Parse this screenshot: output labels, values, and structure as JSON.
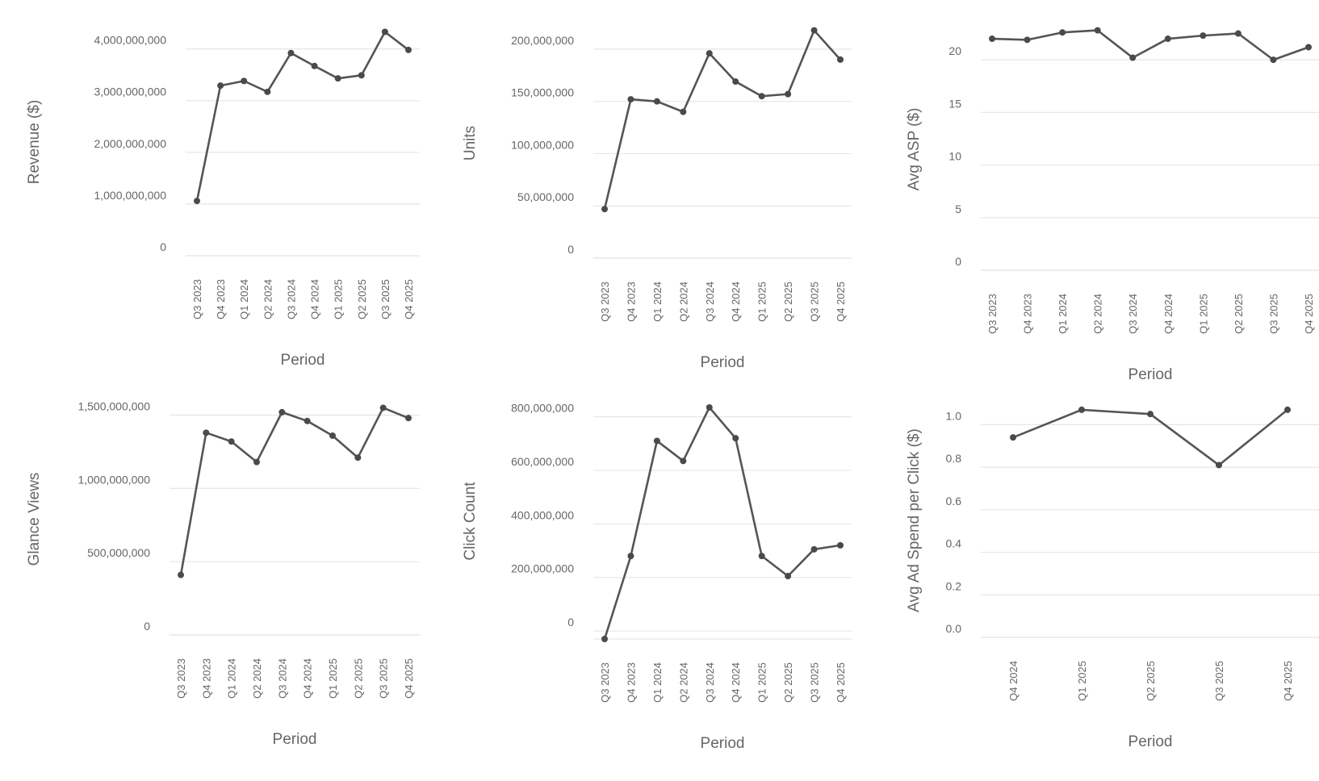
{
  "colors": {
    "series": "#555555",
    "point": "#4a4a4a",
    "grid": "#e6e6e6",
    "text": "#666666"
  },
  "chart_data": [
    {
      "type": "line",
      "xlabel": "Period",
      "ylabel": "Revenue ($)",
      "categories": [
        "Q3 2023",
        "Q4 2023",
        "Q1 2024",
        "Q2 2024",
        "Q3 2024",
        "Q4 2024",
        "Q1 2025",
        "Q2 2025",
        "Q3 2025",
        "Q4 2025"
      ],
      "values": [
        1060000000,
        3290000000,
        3380000000,
        3170000000,
        3920000000,
        3670000000,
        3430000000,
        3490000000,
        4330000000,
        3980000000
      ],
      "yticks": [
        0,
        1000000000,
        2000000000,
        3000000000,
        4000000000
      ],
      "ytick_labels": [
        "0",
        "1,000,000,000",
        "2,000,000,000",
        "3,000,000,000",
        "4,000,000,000"
      ],
      "ylim": [
        0,
        4400000000
      ],
      "grid": true
    },
    {
      "type": "line",
      "xlabel": "Period",
      "ylabel": "Units",
      "categories": [
        "Q3 2023",
        "Q4 2023",
        "Q1 2024",
        "Q2 2024",
        "Q3 2024",
        "Q4 2024",
        "Q1 2025",
        "Q2 2025",
        "Q3 2025",
        "Q4 2025"
      ],
      "values": [
        47000000,
        152000000,
        150000000,
        140000000,
        196000000,
        169000000,
        155000000,
        157000000,
        218000000,
        190000000
      ],
      "yticks": [
        0,
        50000000,
        100000000,
        150000000,
        200000000
      ],
      "ytick_labels": [
        "0",
        "50,000,000",
        "100,000,000",
        "150,000,000",
        "200,000,000"
      ],
      "ylim": [
        0,
        220000000
      ],
      "grid": true
    },
    {
      "type": "line",
      "xlabel": "Period",
      "ylabel": "Avg ASP ($)",
      "categories": [
        "Q3 2023",
        "Q4 2023",
        "Q1 2024",
        "Q2 2024",
        "Q3 2024",
        "Q4 2024",
        "Q1 2025",
        "Q2 2025",
        "Q3 2025",
        "Q4 2025"
      ],
      "values": [
        22.0,
        21.9,
        22.6,
        22.8,
        20.2,
        22.0,
        22.3,
        22.5,
        20.0,
        21.2
      ],
      "yticks": [
        0,
        5,
        10,
        15,
        20
      ],
      "ytick_labels": [
        "0",
        "5",
        "10",
        "15",
        "20"
      ],
      "ylim": [
        0,
        23
      ],
      "grid": true
    },
    {
      "type": "line",
      "xlabel": "Period",
      "ylabel": "Glance Views",
      "categories": [
        "Q3 2023",
        "Q4 2023",
        "Q1 2024",
        "Q2 2024",
        "Q3 2024",
        "Q4 2024",
        "Q1 2025",
        "Q2 2025",
        "Q3 2025",
        "Q4 2025"
      ],
      "values": [
        410000000,
        1380000000,
        1320000000,
        1180000000,
        1520000000,
        1460000000,
        1360000000,
        1210000000,
        1550000000,
        1480000000
      ],
      "yticks": [
        0,
        500000000,
        1000000000,
        1500000000
      ],
      "ytick_labels": [
        "0",
        "500,000,000",
        "1,000,000,000",
        "1,500,000,000"
      ],
      "ylim": [
        0,
        1580000000
      ],
      "grid": true
    },
    {
      "type": "line",
      "xlabel": "Period",
      "ylabel": "Click Count",
      "categories": [
        "Q3 2023",
        "Q4 2023",
        "Q1 2024",
        "Q2 2024",
        "Q3 2024",
        "Q4 2024",
        "Q1 2025",
        "Q2 2025",
        "Q3 2025",
        "Q4 2025"
      ],
      "values": [
        -30000000,
        280000000,
        710000000,
        635000000,
        835000000,
        720000000,
        280000000,
        205000000,
        305000000,
        320000000
      ],
      "yticks": [
        0,
        200000000,
        400000000,
        600000000,
        800000000
      ],
      "ytick_labels": [
        "0",
        "200,000,000",
        "400,000,000",
        "600,000,000",
        "800,000,000"
      ],
      "ylim": [
        -30000000,
        850000000
      ],
      "grid": true
    },
    {
      "type": "line",
      "xlabel": "Period",
      "ylabel": "Avg Ad Spend per Click ($)",
      "categories": [
        "Q4 2024",
        "Q1 2025",
        "Q2 2025",
        "Q3 2025",
        "Q4 2025"
      ],
      "values": [
        0.94,
        1.07,
        1.05,
        0.81,
        1.07
      ],
      "yticks": [
        0,
        0.2,
        0.4,
        0.6,
        0.8,
        1.0
      ],
      "ytick_labels": [
        "0.0",
        "0.2",
        "0.4",
        "0.6",
        "0.8",
        "1.0"
      ],
      "ylim": [
        0,
        1.1
      ],
      "grid": true
    }
  ]
}
